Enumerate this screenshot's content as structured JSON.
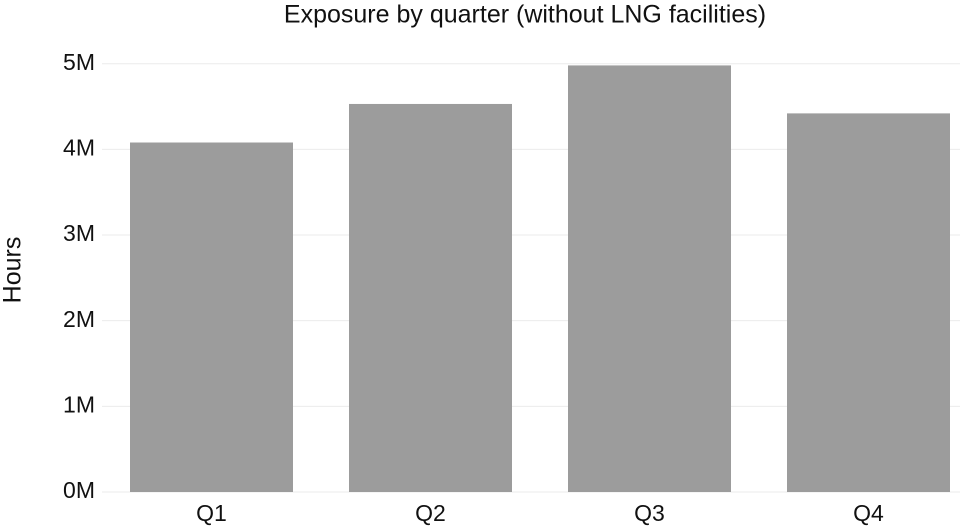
{
  "chart_data": {
    "type": "bar",
    "title": "Exposure by quarter (without LNG facilities)",
    "y_label": "Hours",
    "categories": [
      "Q1",
      "Q2",
      "Q3",
      "Q4"
    ],
    "values": [
      4080000,
      4530000,
      4980000,
      4420000
    ],
    "color": "#9c9c9c",
    "ylim": [
      0,
      5300000
    ],
    "yticks": [
      {
        "value": 0,
        "label": "0M"
      },
      {
        "value": 1000000,
        "label": "1M"
      },
      {
        "value": 2000000,
        "label": "2M"
      },
      {
        "value": 3000000,
        "label": "3M"
      },
      {
        "value": 4000000,
        "label": "4M"
      },
      {
        "value": 5000000,
        "label": "5M"
      }
    ],
    "grid": true
  }
}
